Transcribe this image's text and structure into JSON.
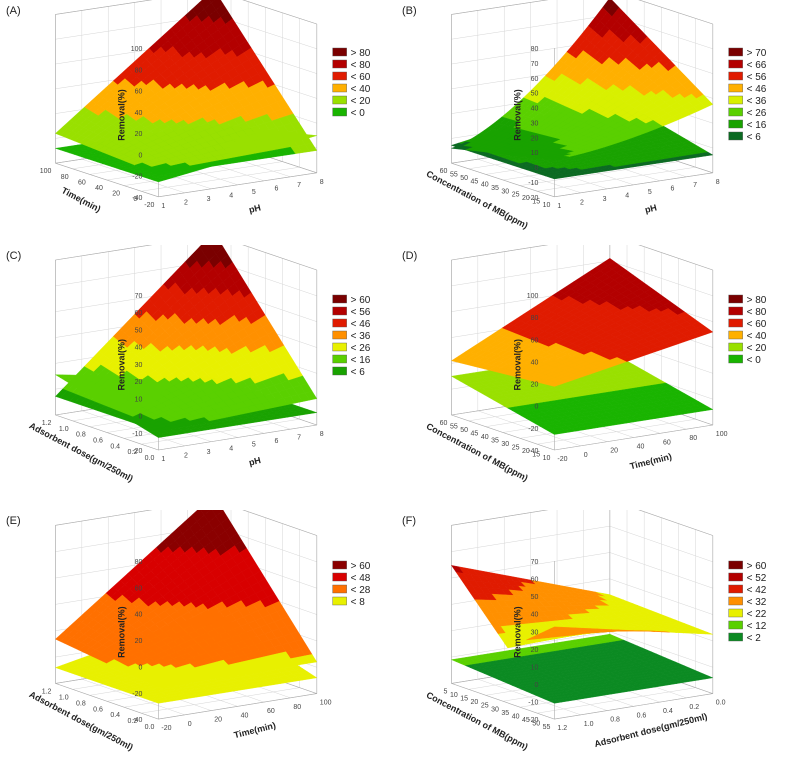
{
  "chart_data": [
    {
      "type": "surface3d",
      "panel_label": "(A)",
      "zlabel": "Removal(%)",
      "xlabel": "Time(min)",
      "ylabel": "pH",
      "z_ticks": [
        "100",
        "80",
        "60",
        "40",
        "20",
        "0",
        "-20",
        "-40"
      ],
      "x_ticks": [
        "100",
        "80",
        "60",
        "40",
        "20",
        "0",
        "-20"
      ],
      "y_ticks": [
        "1",
        "2",
        "3",
        "4",
        "5",
        "6",
        "7",
        "8"
      ],
      "legend": [
        "> 80",
        "< 80",
        "< 60",
        "< 40",
        "< 20",
        "< 0"
      ],
      "colors": [
        "#7a0000",
        "#b30000",
        "#e01b00",
        "#ffb000",
        "#99e000",
        "#19b400"
      ]
    },
    {
      "type": "surface3d",
      "panel_label": "(B)",
      "zlabel": "Removal(%)",
      "xlabel": "Concentration of MB(ppm)",
      "ylabel": "pH",
      "z_ticks": [
        "80",
        "70",
        "60",
        "50",
        "40",
        "30",
        "20",
        "10",
        "0",
        "-10",
        "-20"
      ],
      "x_ticks": [
        "60",
        "55",
        "50",
        "45",
        "40",
        "35",
        "30",
        "25",
        "20",
        "15",
        "10"
      ],
      "y_ticks": [
        "1",
        "2",
        "3",
        "4",
        "5",
        "6",
        "7",
        "8"
      ],
      "legend": [
        "> 70",
        "< 66",
        "< 56",
        "< 46",
        "< 36",
        "< 26",
        "< 16",
        "< 6"
      ],
      "colors": [
        "#7a0000",
        "#b30000",
        "#e01b00",
        "#ffb000",
        "#d8f000",
        "#5ad000",
        "#19a200",
        "#0b6a22"
      ]
    },
    {
      "type": "surface3d",
      "panel_label": "(C)",
      "zlabel": "Removal(%)",
      "xlabel": "Adsorbent dose(gm/250ml)",
      "ylabel": "pH",
      "z_ticks": [
        "70",
        "60",
        "50",
        "40",
        "30",
        "20",
        "10",
        "0",
        "-10",
        "-20"
      ],
      "x_ticks": [
        "1.2",
        "1.0",
        "0.8",
        "0.6",
        "0.4",
        "0.2",
        "0.0"
      ],
      "y_ticks": [
        "1",
        "2",
        "3",
        "4",
        "5",
        "6",
        "7",
        "8"
      ],
      "legend": [
        "> 60",
        "< 56",
        "< 46",
        "< 36",
        "< 26",
        "< 16",
        "< 6"
      ],
      "colors": [
        "#7a0000",
        "#b30000",
        "#e01b00",
        "#ff9000",
        "#e8f000",
        "#5ad000",
        "#19a200"
      ]
    },
    {
      "type": "surface3d",
      "panel_label": "(D)",
      "zlabel": "Removal(%)",
      "xlabel": "Concentration of MB(ppm)",
      "ylabel": "Time(min)",
      "z_ticks": [
        "100",
        "80",
        "60",
        "40",
        "20",
        "0",
        "-20",
        "-40"
      ],
      "x_ticks": [
        "60",
        "55",
        "50",
        "45",
        "40",
        "35",
        "30",
        "25",
        "20",
        "15",
        "10"
      ],
      "y_ticks": [
        "-20",
        "0",
        "20",
        "40",
        "60",
        "80",
        "100"
      ],
      "legend": [
        "> 80",
        "< 80",
        "< 60",
        "< 40",
        "< 20",
        "< 0"
      ],
      "colors": [
        "#7a0000",
        "#b30000",
        "#e01b00",
        "#ffb000",
        "#99e000",
        "#19b400"
      ]
    },
    {
      "type": "surface3d",
      "panel_label": "(E)",
      "zlabel": "Removal(%)",
      "xlabel": "Adsorbent dose(gm/250ml)",
      "ylabel": "Time(min)",
      "z_ticks": [
        "80",
        "60",
        "40",
        "20",
        "0",
        "-20",
        "-40"
      ],
      "x_ticks": [
        "1.2",
        "1.0",
        "0.8",
        "0.6",
        "0.4",
        "0.2",
        "0.0"
      ],
      "y_ticks": [
        "-20",
        "0",
        "20",
        "40",
        "60",
        "80",
        "100"
      ],
      "legend": [
        "> 60",
        "< 48",
        "< 28",
        "< 8"
      ],
      "colors": [
        "#8a0000",
        "#d80000",
        "#ff7000",
        "#e8f000"
      ]
    },
    {
      "type": "surface3d",
      "panel_label": "(F)",
      "zlabel": "Removal(%)",
      "xlabel": "Concentration of MB(ppm)",
      "ylabel": "Adsorbent dose(gm/250ml)",
      "z_ticks": [
        "70",
        "60",
        "50",
        "40",
        "30",
        "20",
        "10",
        "0",
        "-10",
        "-20"
      ],
      "x_ticks": [
        "5",
        "10",
        "15",
        "20",
        "25",
        "30",
        "35",
        "40",
        "45",
        "50",
        "55"
      ],
      "y_ticks": [
        "1.2",
        "1.0",
        "0.8",
        "0.6",
        "0.4",
        "0.2",
        "0.0"
      ],
      "legend": [
        "> 60",
        "< 52",
        "< 42",
        "< 32",
        "< 22",
        "< 12",
        "< 2"
      ],
      "colors": [
        "#7a0000",
        "#b30000",
        "#e01b00",
        "#ff9000",
        "#e8f000",
        "#5ad000",
        "#0b8a22"
      ]
    }
  ]
}
